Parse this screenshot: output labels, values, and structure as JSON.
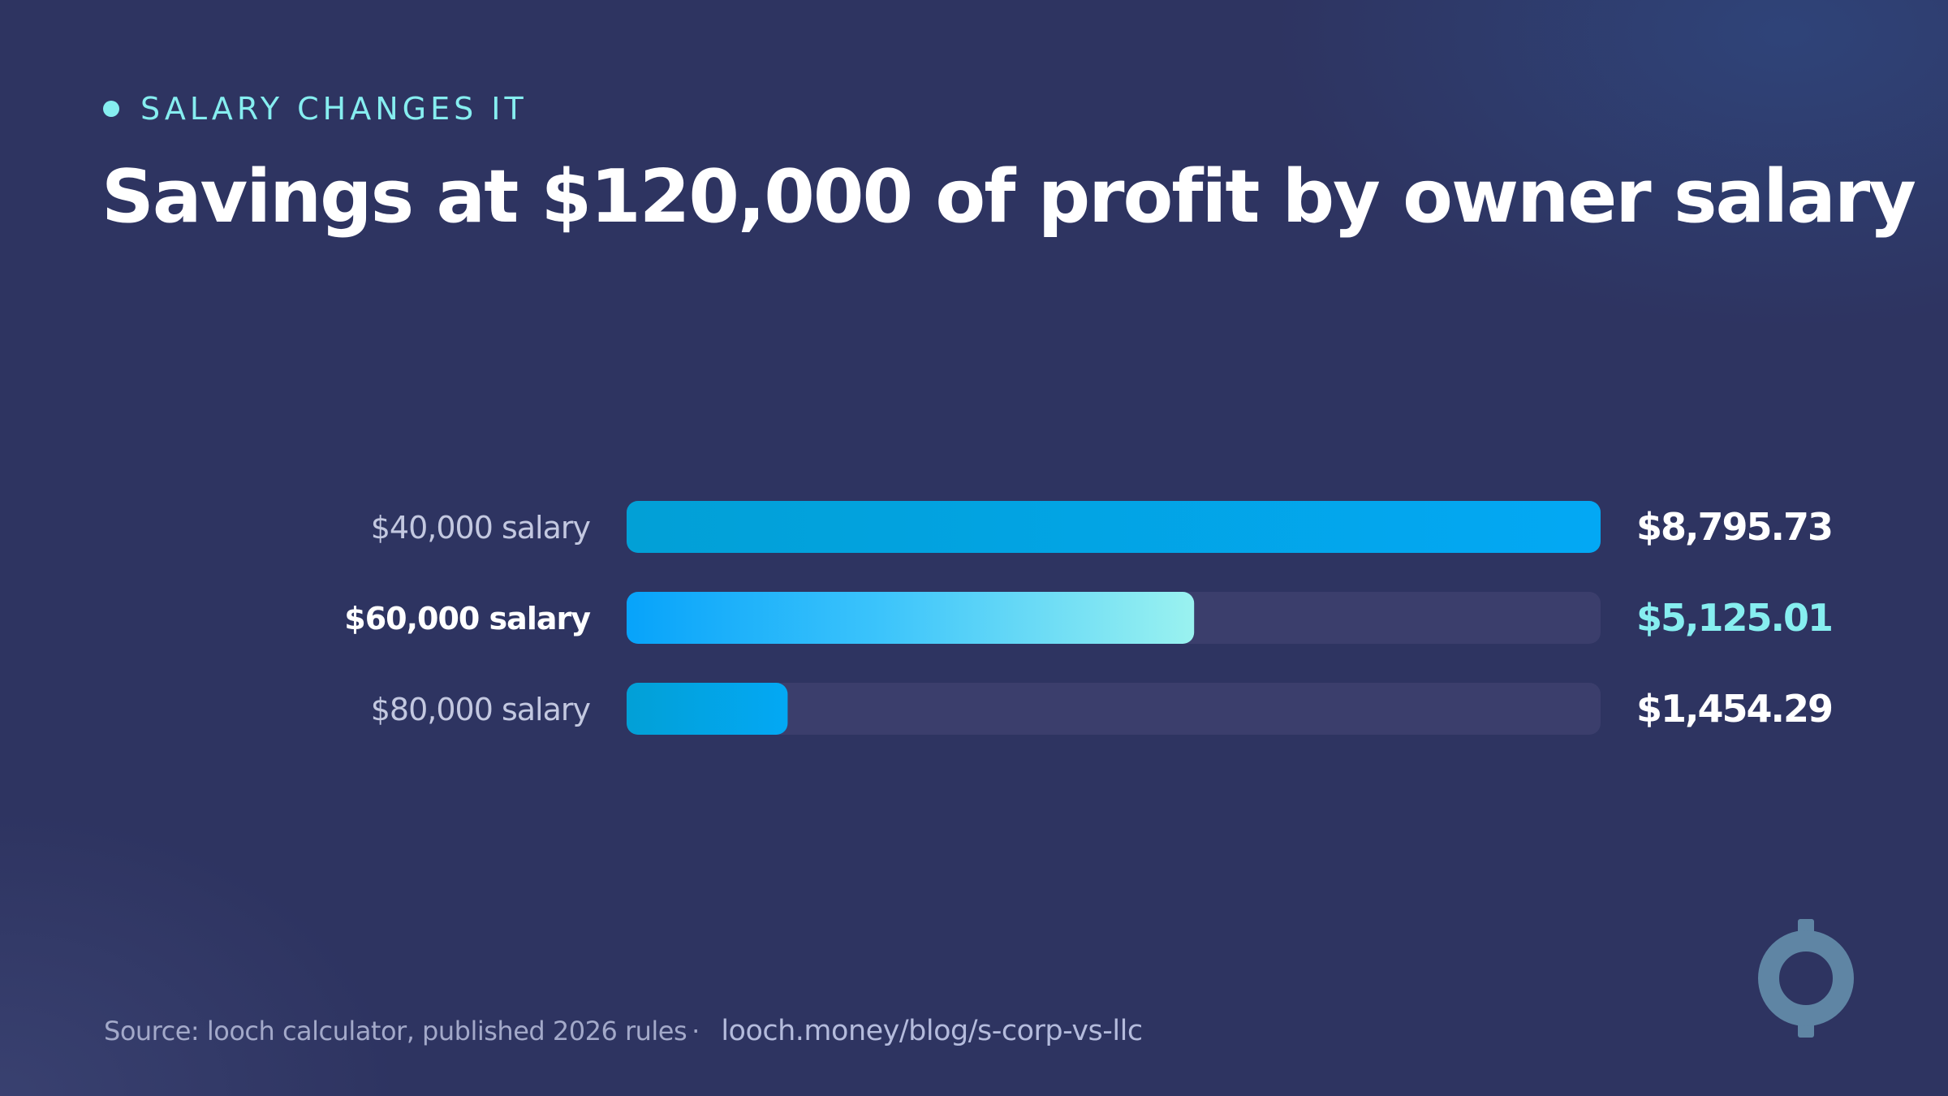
{
  "eyebrow": "SALARY CHANGES IT",
  "title": "Savings at $120,000 of profit by owner salary",
  "footer": {
    "source": "Source: looch calculator, published 2026 rules",
    "separator": "·",
    "link": "looch.money/blog/s-corp-vs-llc"
  },
  "colors": {
    "background": "#2e3461",
    "accent": "#86eef0",
    "bar_primary": "#05a6ee",
    "bar_track": "#3b3e6c",
    "label_dim": "#c3c8e0",
    "logo": "#5f85a4"
  },
  "icons": {
    "logo": "looch-coin-icon",
    "eyebrow": "dot-icon"
  },
  "chart_data": {
    "type": "bar",
    "orientation": "horizontal",
    "title": "Savings at $120,000 of profit by owner salary",
    "categories": [
      "$40,000 salary",
      "$60,000 salary",
      "$80,000 salary"
    ],
    "values": [
      8795.73,
      5125.01,
      1454.29
    ],
    "value_labels": [
      "$8,795.73",
      "$5,125.01",
      "$1,454.29"
    ],
    "highlighted_index": 1,
    "xlim": [
      0,
      8795.73
    ],
    "grid": false,
    "legend": "none"
  }
}
